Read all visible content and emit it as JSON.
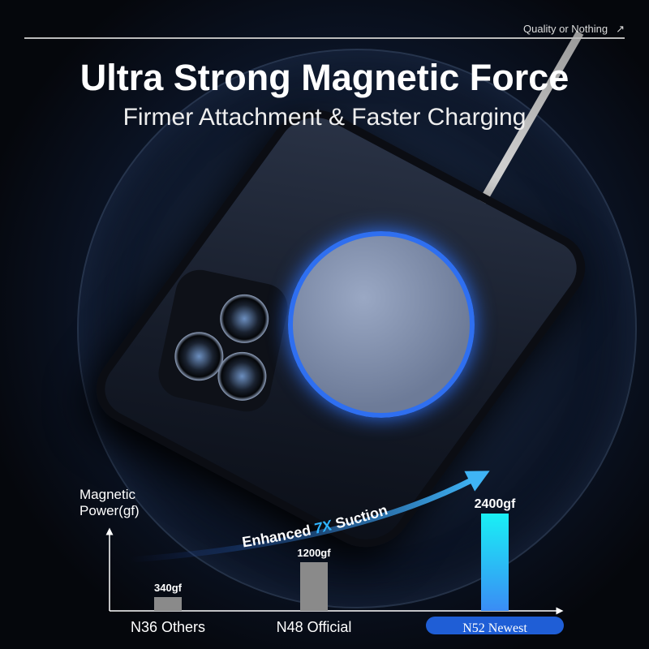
{
  "header": {
    "tagline": "Quality or Nothing",
    "tagline_icon": "arrow-up-right-icon",
    "title": "Ultra Strong Magnetic Force",
    "subtitle": "Firmer Attachment & Faster Charging"
  },
  "colors": {
    "accent": "#2f9cf0",
    "highlight_bar": "#19e6f5",
    "gray_bar": "#8a8a8a"
  },
  "chart_data": {
    "type": "bar",
    "ylabel_line1": "Magnetic",
    "ylabel_line2": "Power(gf)",
    "categories": [
      "N36 Others",
      "N48 Official",
      "N52 Newest"
    ],
    "values": [
      340,
      1200,
      2400
    ],
    "data_labels": [
      "340gf",
      "1200gf",
      "2400gf"
    ],
    "annotation": {
      "prefix": "Enhanced ",
      "highlight": "7X",
      "suffix": " Suction"
    },
    "highlighted_category": "N52 Newest",
    "grid": false
  }
}
